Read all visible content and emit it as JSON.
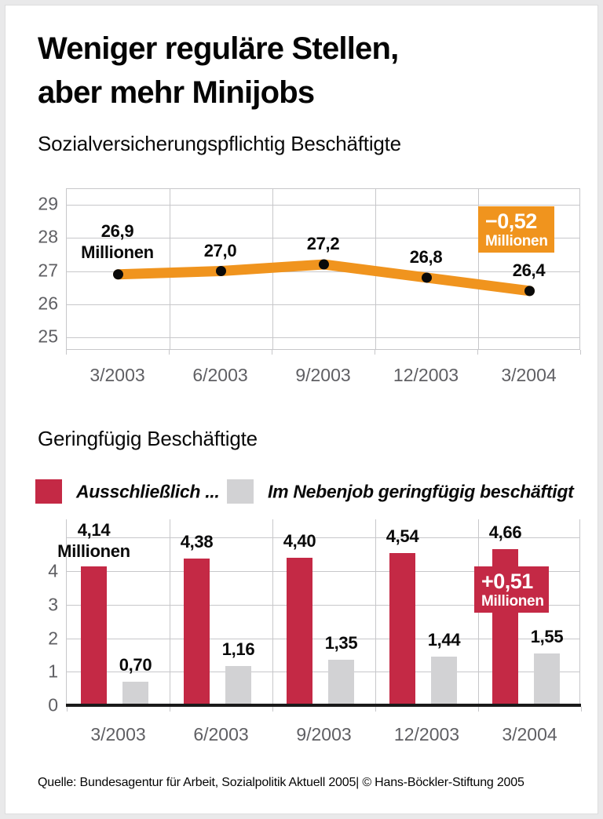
{
  "page": {
    "title_line1": "Weniger reguläre Stellen,",
    "title_line2": "aber mehr Minijobs",
    "source": "Quelle: Bundesagentur für Arbeit, Sozialpolitik Aktuell 2005| © Hans-Böckler-Stiftung 2005"
  },
  "colors": {
    "orange": "#F0941E",
    "red": "#C42945",
    "gray_bar": "#D2D2D4",
    "grid": "#C7C7CA",
    "axis_text": "#5F5F63",
    "marker": "#0A0A0A",
    "baseline": "#1A1A1A",
    "frame": "#E9E9EA"
  },
  "chart_data": [
    {
      "type": "line",
      "title": "Sozialversicherungspflichtig Beschäftigte",
      "categories": [
        "3/2003",
        "6/2003",
        "9/2003",
        "12/2003",
        "3/2004"
      ],
      "values": [
        26.9,
        27.0,
        27.2,
        26.8,
        26.4
      ],
      "point_labels": [
        "26,9",
        "27,0",
        "27,2",
        "26,8",
        "26,4"
      ],
      "first_label_suffix": "Millionen",
      "y_ticks": [
        29,
        28,
        27,
        26,
        25
      ],
      "ylim": [
        24.5,
        29.5
      ],
      "grid": true,
      "legend_position": "none",
      "line_color": "#F0941E",
      "annotation": {
        "line1": "−0,52",
        "line2": "Millionen",
        "color": "#F0941E"
      }
    },
    {
      "type": "bar",
      "title": "Geringfügig Beschäftigte",
      "categories": [
        "3/2003",
        "6/2003",
        "9/2003",
        "12/2003",
        "3/2004"
      ],
      "series": [
        {
          "name": "Ausschließlich ...",
          "color": "#C42945",
          "values": [
            4.14,
            4.38,
            4.4,
            4.54,
            4.66
          ],
          "labels": [
            "4,14",
            "4,38",
            "4,40",
            "4,54",
            "4,66"
          ]
        },
        {
          "name": "Im Nebenjob geringfügig beschäftigt",
          "color": "#D2D2D4",
          "values": [
            0.7,
            1.16,
            1.35,
            1.44,
            1.55
          ],
          "labels": [
            "0,70",
            "1,16",
            "1,35",
            "1,44",
            "1,55"
          ]
        }
      ],
      "first_label_suffix": "Millionen",
      "y_ticks": [
        0,
        1,
        2,
        3,
        4
      ],
      "ylim": [
        0,
        5.5
      ],
      "grid": true,
      "legend_position": "top",
      "annotation": {
        "line1": "+0,51",
        "line2": "Millionen",
        "color": "#C42945"
      }
    }
  ]
}
